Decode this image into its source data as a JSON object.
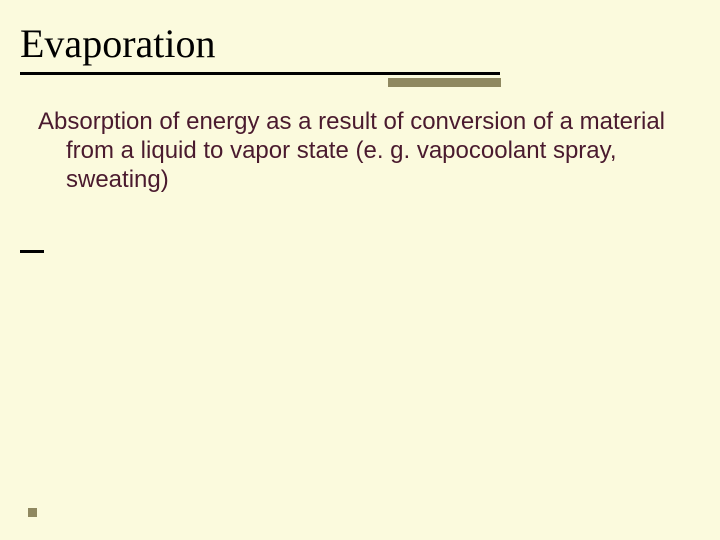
{
  "slide": {
    "background_color": "#fbfadd",
    "title": {
      "text": "Evaporation",
      "color": "#000000",
      "font_family": "Times New Roman",
      "font_size_pt": 30
    },
    "underline_color": "#000000",
    "accent_color": "#8f8860",
    "body": {
      "text": "Absorption of energy as a result of conversion of a material from a liquid to vapor state (e. g. vapocoolant spray, sweating)",
      "color": "#4a1a2e",
      "font_family": "Arial",
      "font_size_pt": 18
    }
  }
}
